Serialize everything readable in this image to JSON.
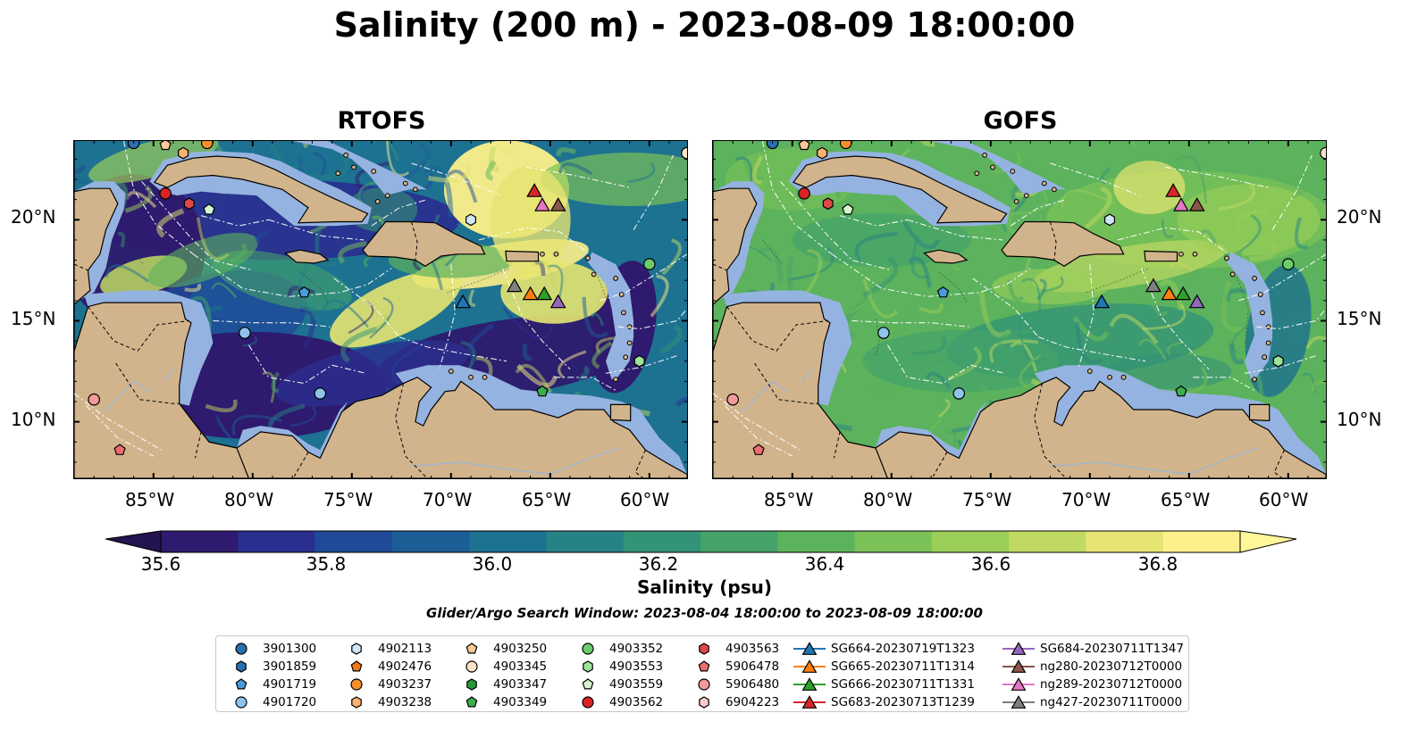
{
  "figure": {
    "title": "Salinity (200 m) - 2023-08-09 18:00:00",
    "panels": [
      {
        "id": "rtofs",
        "title": "RTOFS",
        "variant": "rtofs"
      },
      {
        "id": "gofs",
        "title": "GOFS",
        "variant": "gofs"
      }
    ],
    "lat_ticks": [
      "20°N",
      "15°N",
      "10°N"
    ],
    "lon_ticks": [
      "85°W",
      "80°W",
      "75°W",
      "70°W",
      "65°W",
      "60°W"
    ],
    "colorbar": {
      "label": "Salinity (psu)",
      "ticks": [
        "35.6",
        "35.8",
        "36.0",
        "36.2",
        "36.4",
        "36.6",
        "36.8"
      ],
      "range": [
        35.55,
        36.9
      ],
      "colors": [
        "#2e1a6e",
        "#2a2e8f",
        "#1f4a98",
        "#1b5e96",
        "#1d7191",
        "#268285",
        "#339376",
        "#45a36a",
        "#5cb25d",
        "#7ac157",
        "#9bce58",
        "#c0d962",
        "#e6e472",
        "#fdf08a"
      ]
    },
    "search_window": "Glider/Argo Search Window: 2023-08-04 18:00:00 to 2023-08-09 18:00:00",
    "colors": {
      "land": "#d2b48c",
      "shelf": "#95b3e0",
      "background": "#ffffff"
    }
  },
  "legend": {
    "items": [
      {
        "label": "3901300",
        "marker": "circle",
        "color": "#2a6fb0"
      },
      {
        "label": "3901859",
        "marker": "hexagon",
        "color": "#2a6fb0"
      },
      {
        "label": "4901719",
        "marker": "pentagon",
        "color": "#4a9bd8"
      },
      {
        "label": "4901720",
        "marker": "circle",
        "color": "#8fc3ea"
      },
      {
        "label": "4902113",
        "marker": "hexagon",
        "color": "#cfe6f8"
      },
      {
        "label": "4902476",
        "marker": "pentagon",
        "color": "#f07a10"
      },
      {
        "label": "4903237",
        "marker": "circle",
        "color": "#f7902c"
      },
      {
        "label": "4903238",
        "marker": "hexagon",
        "color": "#fbb26e"
      },
      {
        "label": "4903250",
        "marker": "pentagon",
        "color": "#fcc896"
      },
      {
        "label": "4903345",
        "marker": "circle",
        "color": "#fde3c6"
      },
      {
        "label": "4903347",
        "marker": "hexagon",
        "color": "#249a3a"
      },
      {
        "label": "4903349",
        "marker": "pentagon",
        "color": "#3cae4c"
      },
      {
        "label": "4903352",
        "marker": "circle",
        "color": "#6ccc6a"
      },
      {
        "label": "4903553",
        "marker": "hexagon",
        "color": "#9ee39a"
      },
      {
        "label": "4903559",
        "marker": "pentagon",
        "color": "#d5f5cf"
      },
      {
        "label": "4903562",
        "marker": "circle",
        "color": "#d82424"
      },
      {
        "label": "4903563",
        "marker": "hexagon",
        "color": "#e04848"
      },
      {
        "label": "5906478",
        "marker": "pentagon",
        "color": "#ee6e6e"
      },
      {
        "label": "5906480",
        "marker": "circle",
        "color": "#f59a9a"
      },
      {
        "label": "6904223",
        "marker": "hexagon",
        "color": "#fbc8c8"
      },
      {
        "label": "SG664-20230719T1323",
        "marker": "triangle",
        "color": "#1f77b4"
      },
      {
        "label": "SG665-20230711T1314",
        "marker": "triangle",
        "color": "#ff7f0e"
      },
      {
        "label": "SG666-20230711T1331",
        "marker": "triangle",
        "color": "#2ca02c"
      },
      {
        "label": "SG683-20230713T1239",
        "marker": "triangle",
        "color": "#d62728"
      },
      {
        "label": "SG684-20230711T1347",
        "marker": "triangle",
        "color": "#9467bd"
      },
      {
        "label": "ng280-20230712T0000",
        "marker": "triangle",
        "color": "#8c564b"
      },
      {
        "label": "ng289-20230712T0000",
        "marker": "triangle",
        "color": "#e377c2"
      },
      {
        "label": "ng427-20230711T0000",
        "marker": "triangle",
        "color": "#7f7f7f"
      }
    ]
  },
  "platforms": [
    {
      "id": "3901300",
      "lon": -86.0,
      "lat": 23.8
    },
    {
      "id": "4903237",
      "lon": -82.3,
      "lat": 23.8
    },
    {
      "id": "4903250",
      "lon": -84.4,
      "lat": 23.7
    },
    {
      "id": "4903238",
      "lon": -83.5,
      "lat": 23.3
    },
    {
      "id": "4903345",
      "lon": -58.1,
      "lat": 23.3
    },
    {
      "id": "4903562",
      "lon": -84.4,
      "lat": 21.3
    },
    {
      "id": "4903563",
      "lon": -83.2,
      "lat": 20.8
    },
    {
      "id": "4903559",
      "lon": -82.2,
      "lat": 20.5
    },
    {
      "id": "4902113",
      "lon": -69.0,
      "lat": 20.0
    },
    {
      "id": "4903352",
      "lon": -60.0,
      "lat": 17.8
    },
    {
      "id": "4901719",
      "lon": -77.4,
      "lat": 16.4
    },
    {
      "id": "4901720",
      "lon": -80.4,
      "lat": 14.4
    },
    {
      "id": "4903553",
      "lon": -60.5,
      "lat": 13.0
    },
    {
      "id": "4903349",
      "lon": -65.4,
      "lat": 11.5
    },
    {
      "id": "3901300b",
      "lon": -76.6,
      "lat": 11.4
    },
    {
      "id": "5906480",
      "lon": -88.0,
      "lat": 11.1
    },
    {
      "id": "5906478",
      "lon": -86.7,
      "lat": 8.6
    },
    {
      "id": "SG683-20230713T1239",
      "lon": -65.8,
      "lat": 21.4
    },
    {
      "id": "ng289-20230712T0000",
      "lon": -65.4,
      "lat": 20.7
    },
    {
      "id": "ng280-20230712T0000",
      "lon": -64.6,
      "lat": 20.7
    },
    {
      "id": "ng427-20230711T0000",
      "lon": -66.8,
      "lat": 16.7
    },
    {
      "id": "SG665-20230711T1314",
      "lon": -66.0,
      "lat": 16.3
    },
    {
      "id": "SG666-20230711T1331",
      "lon": -65.3,
      "lat": 16.3
    },
    {
      "id": "SG684-20230711T1347",
      "lon": -64.6,
      "lat": 15.9
    },
    {
      "id": "SG664-20230719T1323",
      "lon": -69.4,
      "lat": 15.9
    }
  ]
}
